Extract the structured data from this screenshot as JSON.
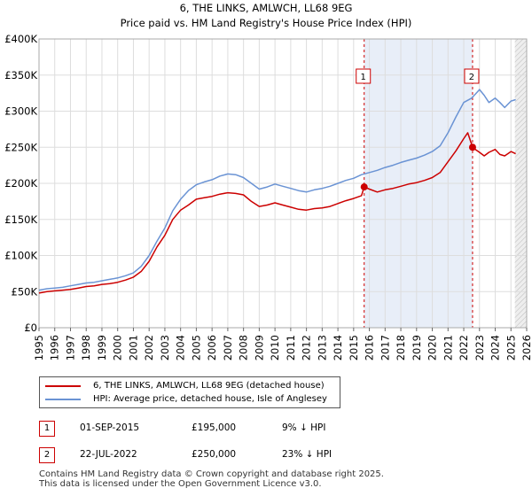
{
  "chart_data": {
    "type": "line",
    "title": "6, THE LINKS, AMLWCH, LL68 9EG",
    "subtitle": "Price paid vs. HM Land Registry's House Price Index (HPI)",
    "xlabel": "",
    "ylabel": "",
    "xlim": [
      1995,
      2026
    ],
    "ylim": [
      0,
      400000
    ],
    "x_ticks": [
      "1995",
      "1996",
      "1997",
      "1998",
      "1999",
      "2000",
      "2001",
      "2002",
      "2003",
      "2004",
      "2005",
      "2006",
      "2007",
      "2008",
      "2009",
      "2010",
      "2011",
      "2012",
      "2013",
      "2014",
      "2015",
      "2016",
      "2017",
      "2018",
      "2019",
      "2020",
      "2021",
      "2022",
      "2023",
      "2024",
      "2025",
      "2026"
    ],
    "y_ticks": [
      {
        "value": 0,
        "label": "£0"
      },
      {
        "value": 50000,
        "label": "£50K"
      },
      {
        "value": 100000,
        "label": "£100K"
      },
      {
        "value": 150000,
        "label": "£150K"
      },
      {
        "value": 200000,
        "label": "£200K"
      },
      {
        "value": 250000,
        "label": "£250K"
      },
      {
        "value": 300000,
        "label": "£300K"
      },
      {
        "value": 350000,
        "label": "£350K"
      },
      {
        "value": 400000,
        "label": "£400K"
      }
    ],
    "grid": true,
    "series": [
      {
        "name": "6, THE LINKS, AMLWCH, LL68 9EG (detached house)",
        "color": "#cc0000",
        "x": [
          1995.0,
          1995.5,
          1996.0,
          1996.5,
          1997.0,
          1997.5,
          1998.0,
          1998.5,
          1999.0,
          1999.5,
          2000.0,
          2000.5,
          2001.0,
          2001.5,
          2002.0,
          2002.5,
          2003.0,
          2003.5,
          2004.0,
          2004.5,
          2005.0,
          2005.5,
          2006.0,
          2006.5,
          2007.0,
          2007.5,
          2008.0,
          2008.5,
          2009.0,
          2009.5,
          2010.0,
          2010.5,
          2011.0,
          2011.5,
          2012.0,
          2012.5,
          2013.0,
          2013.5,
          2014.0,
          2014.5,
          2015.0,
          2015.5,
          2015.67,
          2016.0,
          2016.5,
          2017.0,
          2017.5,
          2018.0,
          2018.5,
          2019.0,
          2019.5,
          2020.0,
          2020.5,
          2021.0,
          2021.5,
          2022.0,
          2022.25,
          2022.56,
          2022.8,
          2023.0,
          2023.3,
          2023.6,
          2024.0,
          2024.3,
          2024.6,
          2025.0,
          2025.3
        ],
        "values": [
          48000,
          50000,
          51000,
          52000,
          53000,
          55000,
          57000,
          58000,
          60000,
          61000,
          63000,
          66000,
          70000,
          78000,
          92000,
          112000,
          128000,
          150000,
          163000,
          170000,
          178000,
          180000,
          182000,
          185000,
          187000,
          186000,
          184000,
          175000,
          168000,
          170000,
          173000,
          170000,
          167000,
          164000,
          163000,
          165000,
          166000,
          168000,
          172000,
          176000,
          179000,
          183000,
          195000,
          192000,
          188000,
          191000,
          193000,
          196000,
          199000,
          201000,
          204000,
          208000,
          215000,
          230000,
          245000,
          262000,
          270000,
          250000,
          246000,
          243000,
          238000,
          243000,
          247000,
          240000,
          238000,
          244000,
          241000
        ]
      },
      {
        "name": "HPI: Average price, detached house, Isle of Anglesey",
        "color": "#6a93d4",
        "x": [
          1995.0,
          1995.5,
          1996.0,
          1996.5,
          1997.0,
          1997.5,
          1998.0,
          1998.5,
          1999.0,
          1999.5,
          2000.0,
          2000.5,
          2001.0,
          2001.5,
          2002.0,
          2002.5,
          2003.0,
          2003.5,
          2004.0,
          2004.5,
          2005.0,
          2005.5,
          2006.0,
          2006.5,
          2007.0,
          2007.5,
          2008.0,
          2008.5,
          2009.0,
          2009.5,
          2010.0,
          2010.5,
          2011.0,
          2011.5,
          2012.0,
          2012.5,
          2013.0,
          2013.5,
          2014.0,
          2014.5,
          2015.0,
          2015.5,
          2016.0,
          2016.5,
          2017.0,
          2017.5,
          2018.0,
          2018.5,
          2019.0,
          2019.5,
          2020.0,
          2020.5,
          2021.0,
          2021.5,
          2022.0,
          2022.5,
          2022.8,
          2023.0,
          2023.3,
          2023.6,
          2024.0,
          2024.3,
          2024.6,
          2025.0,
          2025.3
        ],
        "values": [
          52000,
          54000,
          55000,
          56000,
          58000,
          60000,
          62000,
          63000,
          65000,
          67000,
          69000,
          72000,
          76000,
          85000,
          100000,
          120000,
          138000,
          162000,
          178000,
          190000,
          198000,
          202000,
          205000,
          210000,
          213000,
          212000,
          208000,
          200000,
          192000,
          195000,
          199000,
          196000,
          193000,
          190000,
          188000,
          191000,
          193000,
          196000,
          200000,
          204000,
          207000,
          212000,
          215000,
          218000,
          222000,
          225000,
          229000,
          232000,
          235000,
          239000,
          244000,
          252000,
          270000,
          292000,
          312000,
          318000,
          325000,
          330000,
          322000,
          312000,
          318000,
          312000,
          305000,
          314000,
          316000
        ]
      }
    ],
    "sale_markers": [
      {
        "label": "1",
        "x": 2015.67,
        "value": 195000
      },
      {
        "label": "2",
        "x": 2022.56,
        "value": 250000
      }
    ],
    "shaded_ranges": [
      {
        "from": 2015.67,
        "to": 2022.56,
        "color": "#e8eef8"
      },
      {
        "from": 2025.25,
        "to": 2026,
        "color": "#eeeeee",
        "hatched": true
      }
    ],
    "legend_position": "bottom"
  },
  "legend": {
    "items": [
      {
        "label": "6, THE LINKS, AMLWCH, LL68 9EG (detached house)",
        "color": "#cc0000"
      },
      {
        "label": "HPI: Average price, detached house, Isle of Anglesey",
        "color": "#6a93d4"
      }
    ]
  },
  "sales": [
    {
      "marker": "1",
      "date": "01-SEP-2015",
      "price": "£195,000",
      "hpi": "9% ↓ HPI"
    },
    {
      "marker": "2",
      "date": "22-JUL-2022",
      "price": "£250,000",
      "hpi": "23% ↓ HPI"
    }
  ],
  "footer": {
    "line1": "Contains HM Land Registry data © Crown copyright and database right 2025.",
    "line2": "This data is licensed under the Open Government Licence v3.0."
  }
}
